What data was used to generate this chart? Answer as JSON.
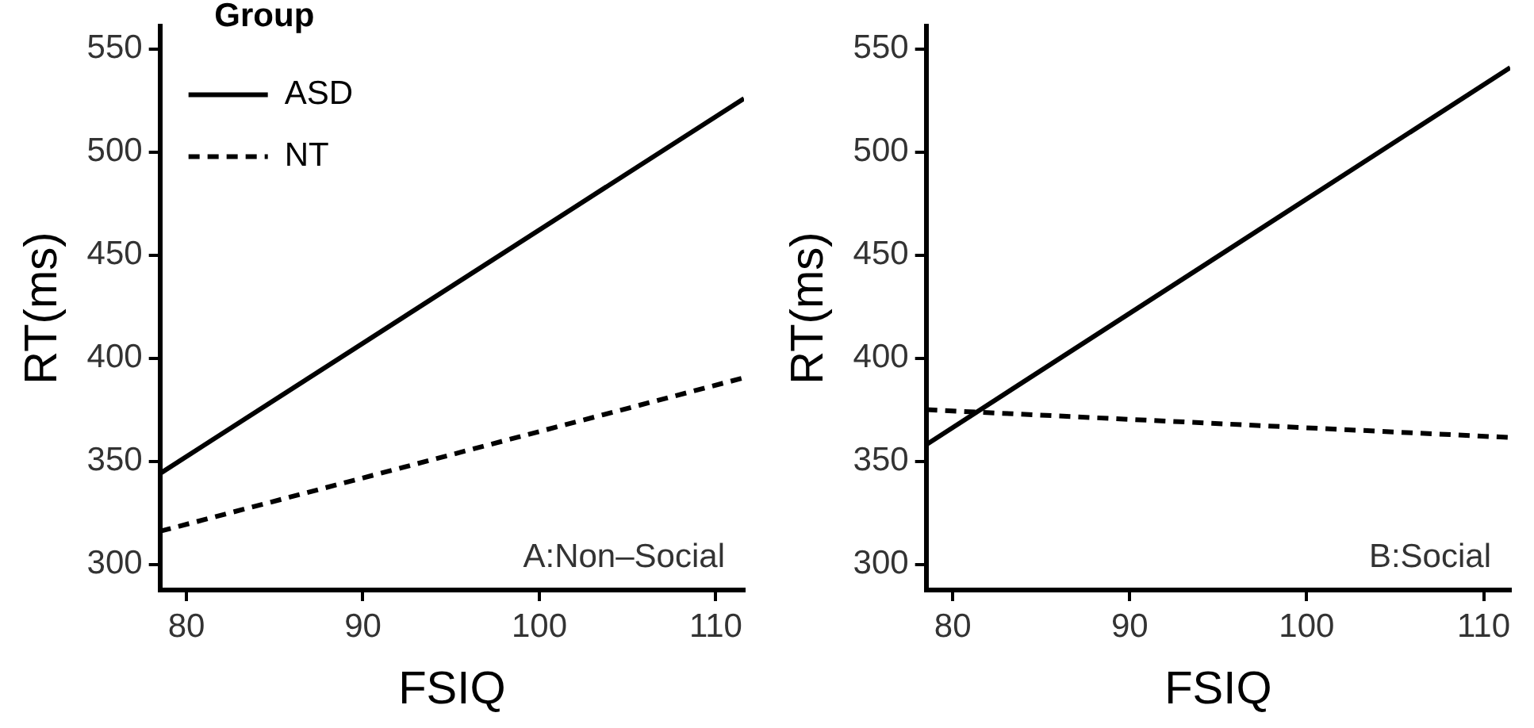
{
  "chart_data": [
    {
      "type": "line",
      "xlabel": "FSIQ",
      "ylabel": "RT(ms)",
      "legend_title": "Group",
      "legend": "top left",
      "grid": false,
      "marker": "none",
      "x": [
        78.5,
        111.6
      ],
      "xlim": [
        78.5,
        111.6
      ],
      "xticks": [
        80,
        90,
        100,
        110
      ],
      "ylim": [
        287.5,
        561
      ],
      "yticks": [
        300,
        350,
        400,
        450,
        500,
        550
      ],
      "annotations": [
        "A:Non–Social"
      ],
      "series": [
        {
          "name": "ASD",
          "color": "#000000",
          "line_style": "solid",
          "values": [
            344,
            526
          ]
        },
        {
          "name": "NT",
          "color": "#000000",
          "line_style": "dashed",
          "values": [
            316,
            390.5
          ]
        }
      ]
    },
    {
      "type": "line",
      "xlabel": "FSIQ",
      "ylabel": "RT(ms)",
      "grid": false,
      "marker": "none",
      "x": [
        78.5,
        111.5
      ],
      "xlim": [
        78.5,
        111.5
      ],
      "xticks": [
        80,
        90,
        100,
        110
      ],
      "ylim": [
        287.5,
        561
      ],
      "yticks": [
        300,
        350,
        400,
        450,
        500,
        550
      ],
      "annotations": [
        "B:Social"
      ],
      "series": [
        {
          "color": "#000000",
          "line_style": "solid",
          "values": [
            358,
            541
          ]
        },
        {
          "color": "#000000",
          "line_style": "dashed",
          "values": [
            375,
            361.5
          ]
        }
      ]
    }
  ]
}
